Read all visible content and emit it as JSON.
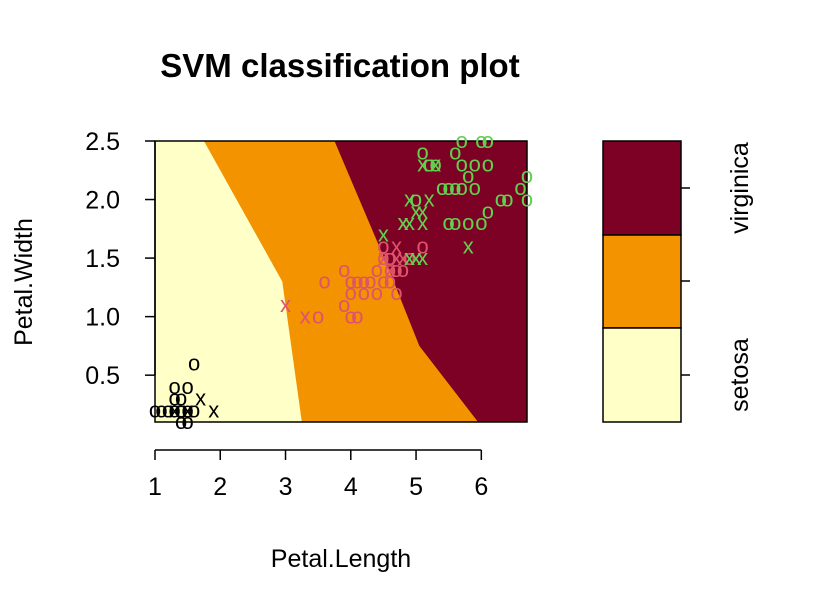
{
  "chart_data": {
    "type": "scatter",
    "title": "SVM classification plot",
    "xlabel": "Petal.Length",
    "ylabel": "Petal.Width",
    "xlim": [
      1,
      6.7
    ],
    "ylim": [
      0.1,
      2.5
    ],
    "x_ticks": [
      "1",
      "2",
      "3",
      "4",
      "5",
      "6"
    ],
    "y_ticks": [
      "0.5",
      "1.0",
      "1.5",
      "2.0",
      "2.5"
    ],
    "grid": false,
    "legend_placement": "right",
    "legend_labels": [
      "setosa",
      "virginica"
    ],
    "region_colors": {
      "setosa": "#FFFFC8",
      "versicolor": "#F39300",
      "virginica": "#7D0025"
    },
    "boundaries": {
      "setosa_versicolor": [
        [
          1.75,
          2.5
        ],
        [
          2.95,
          1.3
        ],
        [
          3.25,
          0.1
        ]
      ],
      "versicolor_virginica": [
        [
          3.75,
          2.5
        ],
        [
          4.55,
          1.45
        ],
        [
          5.05,
          0.75
        ],
        [
          5.95,
          0.1
        ]
      ]
    },
    "series": [
      {
        "color": "#000000",
        "points": [
          [
            1.0,
            0.2,
            "o"
          ],
          [
            1.1,
            0.2,
            "o"
          ],
          [
            1.2,
            0.2,
            "o"
          ],
          [
            1.3,
            0.2,
            "o"
          ],
          [
            1.4,
            0.2,
            "o"
          ],
          [
            1.5,
            0.2,
            "o"
          ],
          [
            1.6,
            0.2,
            "o"
          ],
          [
            1.3,
            0.3,
            "o"
          ],
          [
            1.4,
            0.3,
            "o"
          ],
          [
            1.3,
            0.4,
            "o"
          ],
          [
            1.5,
            0.4,
            "o"
          ],
          [
            1.6,
            0.6,
            "o"
          ],
          [
            1.4,
            0.1,
            "o"
          ],
          [
            1.5,
            0.1,
            "o"
          ],
          [
            1.9,
            0.2,
            "x"
          ],
          [
            1.7,
            0.3,
            "x"
          ],
          [
            1.5,
            0.2,
            "x"
          ],
          [
            1.3,
            0.2,
            "x"
          ]
        ]
      },
      {
        "color": "#DF536B",
        "points": [
          [
            3.0,
            1.1,
            "x"
          ],
          [
            3.3,
            1.0,
            "x"
          ],
          [
            3.5,
            1.0,
            "o"
          ],
          [
            3.6,
            1.3,
            "o"
          ],
          [
            3.9,
            1.4,
            "o"
          ],
          [
            3.9,
            1.1,
            "o"
          ],
          [
            4.0,
            1.0,
            "o"
          ],
          [
            4.0,
            1.2,
            "o"
          ],
          [
            4.0,
            1.3,
            "o"
          ],
          [
            4.1,
            1.0,
            "o"
          ],
          [
            4.1,
            1.3,
            "o"
          ],
          [
            4.2,
            1.2,
            "o"
          ],
          [
            4.2,
            1.3,
            "o"
          ],
          [
            4.3,
            1.3,
            "o"
          ],
          [
            4.4,
            1.2,
            "o"
          ],
          [
            4.4,
            1.4,
            "o"
          ],
          [
            4.5,
            1.3,
            "o"
          ],
          [
            4.5,
            1.5,
            "o"
          ],
          [
            4.5,
            1.6,
            "o"
          ],
          [
            4.6,
            1.3,
            "o"
          ],
          [
            4.6,
            1.4,
            "o"
          ],
          [
            4.6,
            1.5,
            "o"
          ],
          [
            4.7,
            1.2,
            "o"
          ],
          [
            4.7,
            1.4,
            "o"
          ],
          [
            4.8,
            1.4,
            "o"
          ],
          [
            4.9,
            1.5,
            "o"
          ],
          [
            4.8,
            1.8,
            "x"
          ],
          [
            5.1,
            1.6,
            "o"
          ],
          [
            4.7,
            1.6,
            "x"
          ],
          [
            4.8,
            1.5,
            "x"
          ],
          [
            4.6,
            1.4,
            "x"
          ],
          [
            4.5,
            1.5,
            "x"
          ],
          [
            4.7,
            1.5,
            "x"
          ]
        ]
      },
      {
        "color": "#61D04F",
        "points": [
          [
            4.5,
            1.7,
            "x"
          ],
          [
            4.8,
            1.8,
            "x"
          ],
          [
            4.9,
            1.8,
            "x"
          ],
          [
            4.9,
            2.0,
            "x"
          ],
          [
            5.0,
            1.5,
            "x"
          ],
          [
            5.0,
            1.9,
            "x"
          ],
          [
            5.1,
            1.5,
            "x"
          ],
          [
            5.1,
            1.8,
            "x"
          ],
          [
            5.1,
            1.9,
            "x"
          ],
          [
            5.2,
            2.0,
            "x"
          ],
          [
            5.1,
            2.3,
            "x"
          ],
          [
            5.3,
            2.3,
            "x"
          ],
          [
            5.8,
            1.6,
            "x"
          ],
          [
            4.9,
            1.5,
            "x"
          ],
          [
            5.0,
            2.0,
            "o"
          ],
          [
            5.1,
            2.4,
            "o"
          ],
          [
            5.2,
            2.3,
            "o"
          ],
          [
            5.3,
            2.3,
            "o"
          ],
          [
            5.4,
            2.1,
            "o"
          ],
          [
            5.5,
            2.1,
            "o"
          ],
          [
            5.6,
            2.1,
            "o"
          ],
          [
            5.6,
            2.4,
            "o"
          ],
          [
            5.7,
            2.1,
            "o"
          ],
          [
            5.7,
            2.5,
            "o"
          ],
          [
            5.8,
            2.2,
            "o"
          ],
          [
            5.9,
            2.1,
            "o"
          ],
          [
            5.6,
            1.8,
            "o"
          ],
          [
            5.8,
            1.8,
            "o"
          ],
          [
            6.0,
            1.8,
            "o"
          ],
          [
            6.1,
            1.9,
            "o"
          ],
          [
            6.1,
            2.3,
            "o"
          ],
          [
            6.1,
            2.5,
            "o"
          ],
          [
            5.9,
            2.3,
            "o"
          ],
          [
            6.3,
            2.0,
            "o"
          ],
          [
            6.4,
            2.0,
            "o"
          ],
          [
            6.6,
            2.1,
            "o"
          ],
          [
            6.7,
            2.2,
            "o"
          ],
          [
            6.7,
            2.0,
            "o"
          ],
          [
            6.0,
            2.5,
            "o"
          ],
          [
            5.5,
            1.8,
            "o"
          ],
          [
            5.7,
            2.3,
            "o"
          ]
        ]
      }
    ]
  }
}
